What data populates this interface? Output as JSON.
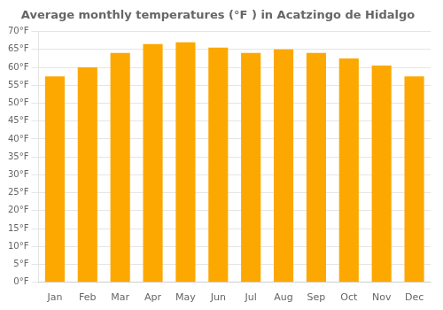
{
  "chart_data": {
    "type": "bar",
    "title": "Average monthly temperatures (°F ) in Acatzingo de Hidalgo",
    "categories": [
      "Jan",
      "Feb",
      "Mar",
      "Apr",
      "May",
      "Jun",
      "Jul",
      "Aug",
      "Sep",
      "Oct",
      "Nov",
      "Dec"
    ],
    "values": [
      57.5,
      60.0,
      64.0,
      66.5,
      67.0,
      65.5,
      64.0,
      65.0,
      64.0,
      62.5,
      60.5,
      57.5
    ],
    "color": "#FCA800",
    "ylim": [
      0,
      70
    ],
    "yticks": [
      {
        "value": 0,
        "label": "0°F"
      },
      {
        "value": 5,
        "label": "5°F"
      },
      {
        "value": 10,
        "label": "10°F"
      },
      {
        "value": 15,
        "label": "15°F"
      },
      {
        "value": 20,
        "label": "20°F"
      },
      {
        "value": 25,
        "label": "25°F"
      },
      {
        "value": 30,
        "label": "30°F"
      },
      {
        "value": 35,
        "label": "35°F"
      },
      {
        "value": 40,
        "label": "40°F"
      },
      {
        "value": 45,
        "label": "45°F"
      },
      {
        "value": 50,
        "label": "50°F"
      },
      {
        "value": 55,
        "label": "55°F"
      },
      {
        "value": 60,
        "label": "60°F"
      },
      {
        "value": 65,
        "label": "65°F"
      },
      {
        "value": 70,
        "label": "70°F"
      }
    ],
    "grid": true
  }
}
